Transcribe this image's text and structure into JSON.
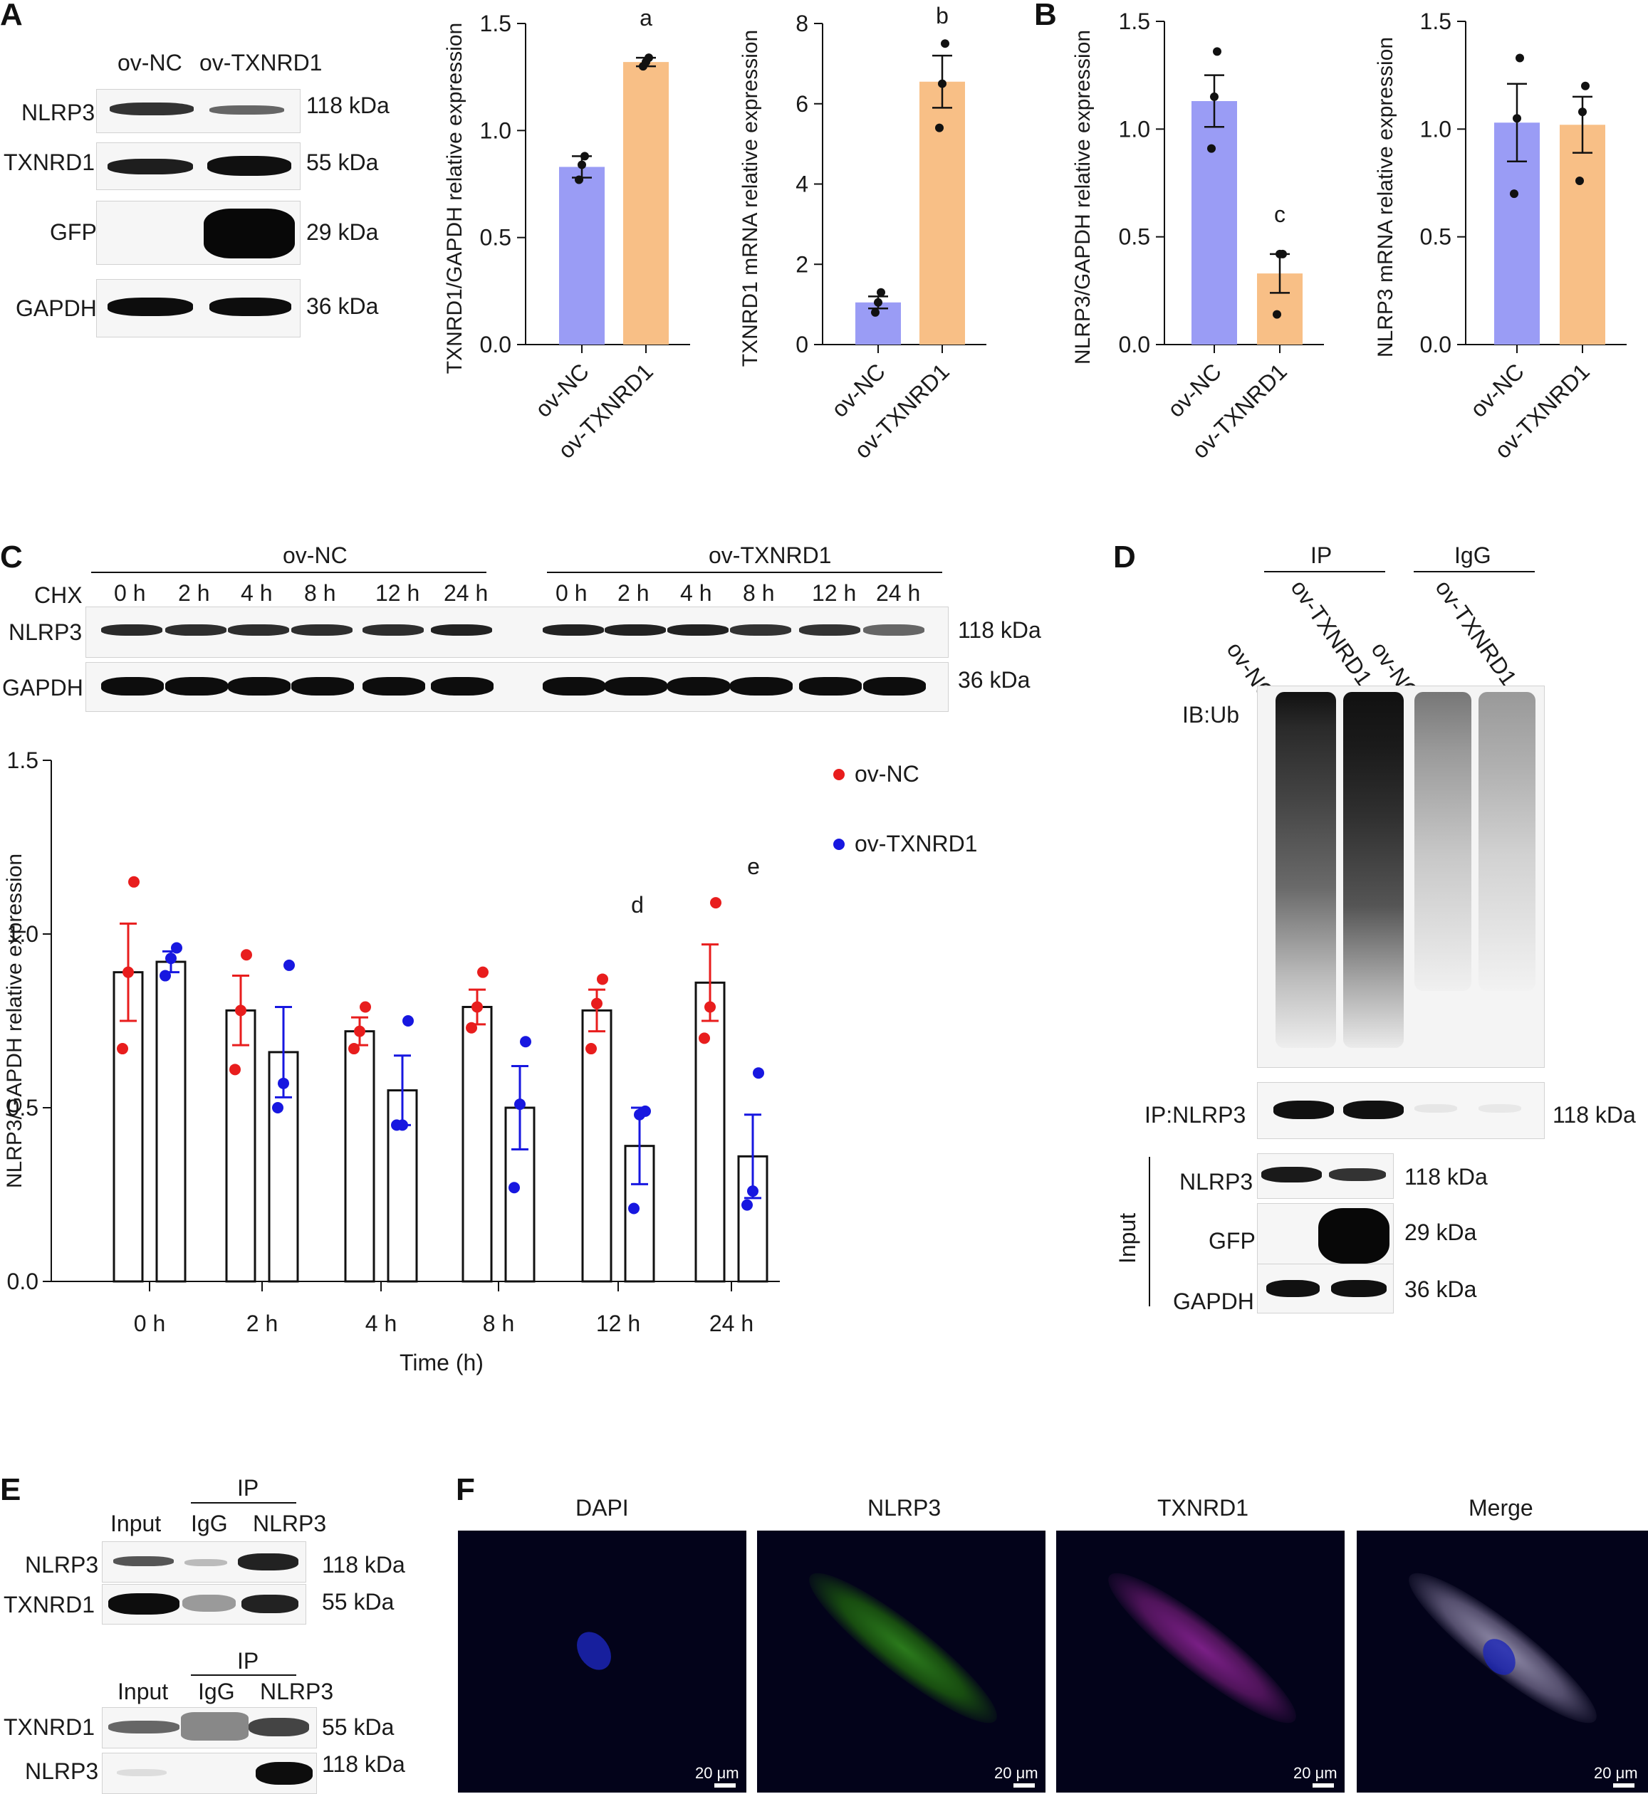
{
  "panel_letters": [
    "A",
    "B",
    "C",
    "D",
    "E",
    "F"
  ],
  "blot_a": {
    "lanes": [
      "ov-NC",
      "ov-TXNRD1"
    ],
    "rows": [
      {
        "name": "NLRP3",
        "size": "118 kDa"
      },
      {
        "name": "TXNRD1",
        "size": "55 kDa"
      },
      {
        "name": "GFP",
        "size": "29 kDa"
      },
      {
        "name": "GAPDH",
        "size": "36 kDa"
      }
    ]
  },
  "blot_c": {
    "cond1": "ov-NC",
    "cond2": "ov-TXNRD1",
    "treatment": "CHX",
    "times": [
      "0 h",
      "2 h",
      "4 h",
      "8 h",
      "12 h",
      "24 h"
    ],
    "rows": [
      {
        "name": "NLRP3",
        "size": "118 kDa"
      },
      {
        "name": "GAPDH",
        "size": "36 kDa"
      }
    ]
  },
  "blot_d": {
    "ip": "IP",
    "igg": "IgG",
    "lanes": [
      "ov-NC",
      "ov-TXNRD1",
      "ov-NC",
      "ov-TXNRD1"
    ],
    "ib": "IB:Ub",
    "ip_row": "IP:NLRP3",
    "ip_row_size": "118 kDa",
    "input_label": "Input",
    "input_rows": [
      {
        "name": "NLRP3",
        "size": "118 kDa"
      },
      {
        "name": "GFP",
        "size": "29 kDa"
      },
      {
        "name": "GAPDH",
        "size": "36 kDa"
      }
    ]
  },
  "blot_e": {
    "ip": "IP",
    "lanes": [
      "Input",
      "IgG",
      "NLRP3"
    ],
    "top_rows": [
      {
        "name": "NLRP3",
        "size": "118 kDa"
      },
      {
        "name": "TXNRD1",
        "size": "55 kDa"
      }
    ],
    "bottom_rows": [
      {
        "name": "TXNRD1",
        "size": "55 kDa"
      },
      {
        "name": "NLRP3",
        "size": "118 kDa"
      }
    ]
  },
  "panel_f": {
    "titles": [
      "DAPI",
      "NLRP3",
      "TXNRD1",
      "Merge"
    ],
    "scale": "20 μm"
  },
  "colors": {
    "nc": "#9a9cf5",
    "tx": "#f8bf86",
    "red": "#e81d1d",
    "blue": "#1717e0",
    "ink": "#111111"
  },
  "chart_data": [
    {
      "type": "bar",
      "categories": [
        "ov-NC",
        "ov-TXNRD1"
      ],
      "values": [
        0.83,
        1.32
      ],
      "errors": [
        0.05,
        0.02
      ],
      "points": [
        [
          0.77,
          0.84,
          0.88
        ],
        [
          1.3,
          1.32,
          1.34
        ]
      ],
      "ylabel": "TXNRD1/GAPDH relative expression",
      "ylim": [
        0,
        1.5
      ],
      "yticks": [
        "0.0",
        "0.5",
        "1.0",
        "1.5"
      ],
      "annotation": "a",
      "grid": false
    },
    {
      "type": "bar",
      "categories": [
        "ov-NC",
        "ov-TXNRD1"
      ],
      "values": [
        1.05,
        6.55
      ],
      "errors": [
        0.15,
        0.65
      ],
      "points": [
        [
          0.8,
          1.05,
          1.3
        ],
        [
          5.4,
          6.5,
          7.5
        ]
      ],
      "ylabel": "TXNRD1 mRNA relative expression",
      "ylim": [
        0,
        8
      ],
      "yticks": [
        "0",
        "2",
        "4",
        "6",
        "8"
      ],
      "annotation": "b",
      "grid": false
    },
    {
      "type": "bar",
      "categories": [
        "ov-NC",
        "ov-TXNRD1"
      ],
      "values": [
        1.13,
        0.33
      ],
      "errors": [
        0.12,
        0.09
      ],
      "points": [
        [
          0.91,
          1.15,
          1.36
        ],
        [
          0.14,
          0.42,
          0.42
        ]
      ],
      "ylabel": "NLRP3/GAPDH relative expression",
      "ylim": [
        0,
        1.5
      ],
      "yticks": [
        "0.0",
        "0.5",
        "1.0",
        "1.5"
      ],
      "annotation": "c",
      "grid": false
    },
    {
      "type": "bar",
      "categories": [
        "ov-NC",
        "ov-TXNRD1"
      ],
      "values": [
        1.03,
        1.02
      ],
      "errors": [
        0.18,
        0.13
      ],
      "points": [
        [
          0.7,
          1.05,
          1.33
        ],
        [
          0.76,
          1.08,
          1.2
        ]
      ],
      "ylabel": "NLRP3 mRNA relative expression",
      "ylim": [
        0,
        1.5
      ],
      "yticks": [
        "0.0",
        "0.5",
        "1.0",
        "1.5"
      ],
      "grid": false
    },
    {
      "type": "bar",
      "categories": [
        "0 h",
        "2 h",
        "4 h",
        "8 h",
        "12 h",
        "24 h"
      ],
      "series": [
        {
          "name": "ov-NC",
          "values": [
            0.89,
            0.78,
            0.72,
            0.79,
            0.78,
            0.86
          ],
          "errors": [
            0.14,
            0.1,
            0.04,
            0.05,
            0.06,
            0.11
          ],
          "points": [
            [
              0.67,
              0.89,
              1.15
            ],
            [
              0.61,
              0.78,
              0.94
            ],
            [
              0.67,
              0.72,
              0.79
            ],
            [
              0.73,
              0.79,
              0.89
            ],
            [
              0.67,
              0.8,
              0.87
            ],
            [
              0.7,
              0.79,
              1.09
            ]
          ]
        },
        {
          "name": "ov-TXNRD1",
          "values": [
            0.92,
            0.66,
            0.55,
            0.5,
            0.39,
            0.36
          ],
          "errors": [
            0.03,
            0.13,
            0.1,
            0.12,
            0.11,
            0.12
          ],
          "points": [
            [
              0.88,
              0.93,
              0.96
            ],
            [
              0.5,
              0.57,
              0.91
            ],
            [
              0.45,
              0.45,
              0.75
            ],
            [
              0.27,
              0.51,
              0.69
            ],
            [
              0.21,
              0.48,
              0.49
            ],
            [
              0.22,
              0.26,
              0.6
            ]
          ]
        }
      ],
      "xlabel": "Time (h)",
      "ylabel": "NLRP3/GAPDH relative expression",
      "ylim": [
        0,
        1.5
      ],
      "yticks": [
        "0.0",
        "0.5",
        "1.0",
        "1.5"
      ],
      "annotations": [
        {
          "text": "d",
          "at": "12 h"
        },
        {
          "text": "e",
          "at": "24 h"
        }
      ],
      "legend": "top-right",
      "grid": false
    }
  ]
}
